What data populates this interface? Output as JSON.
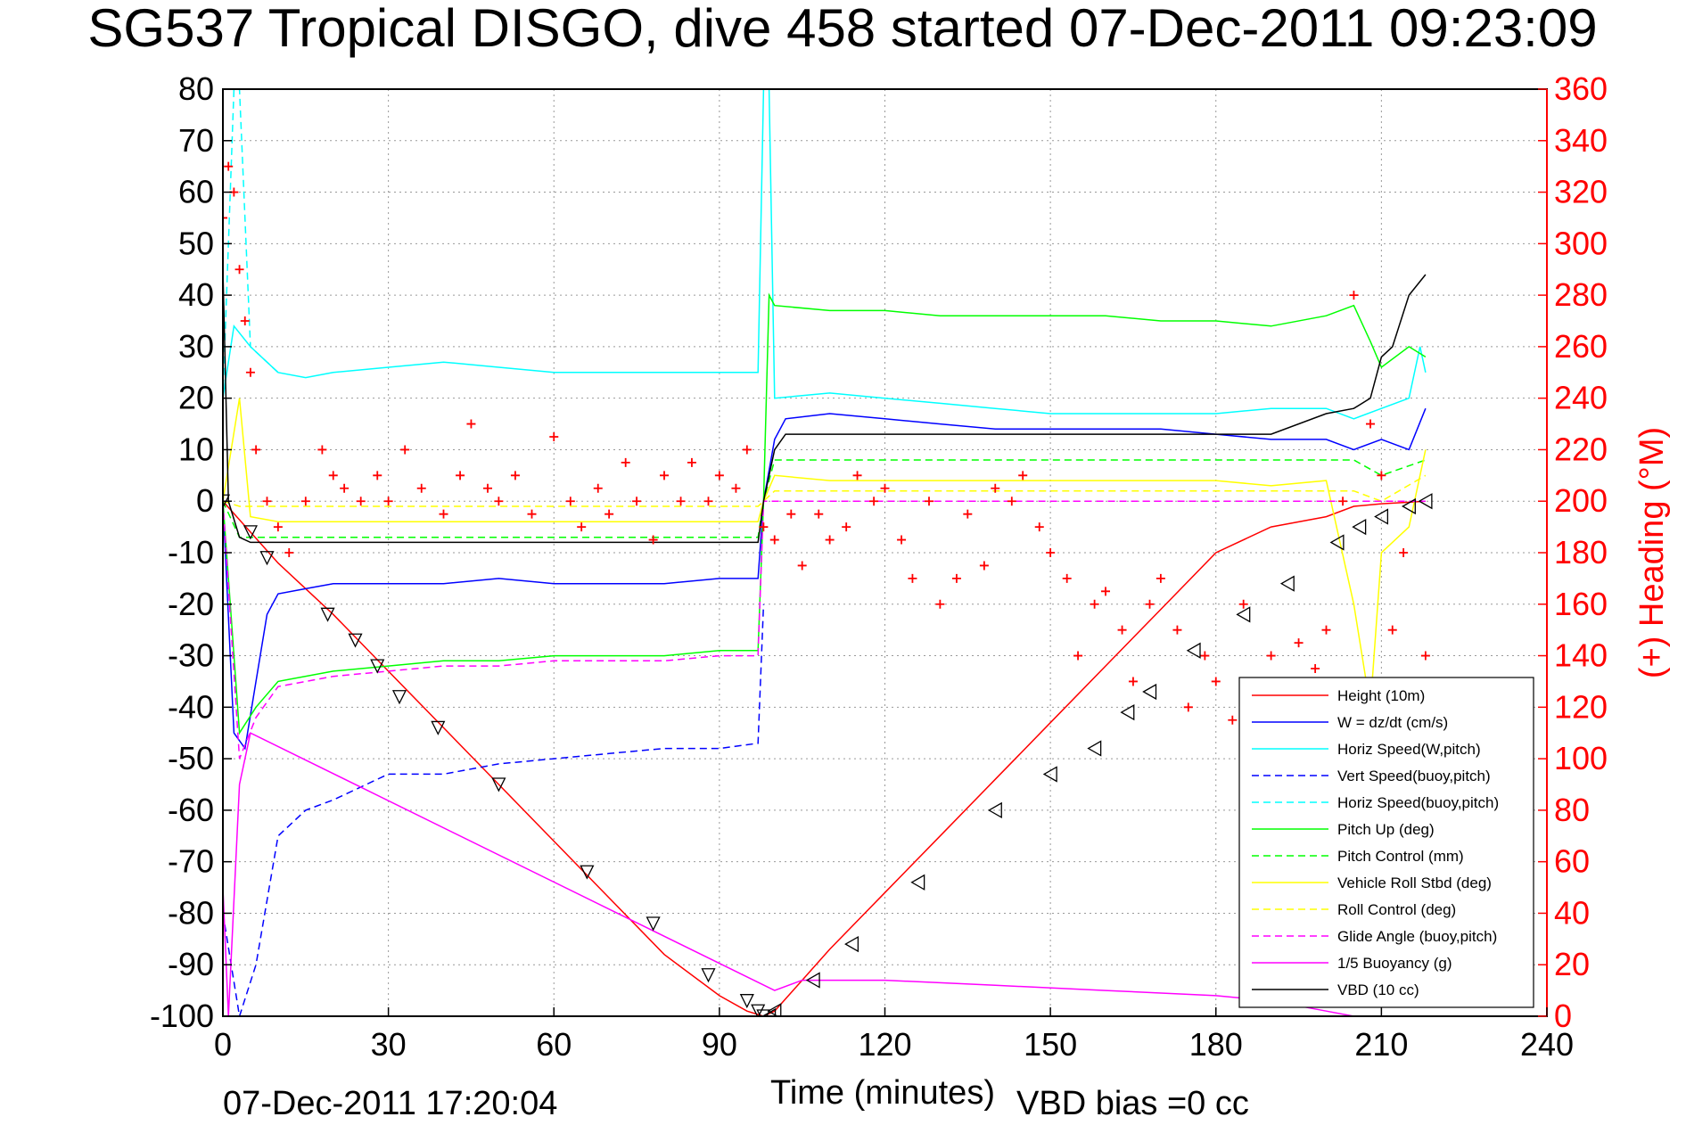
{
  "chart_data": {
    "type": "line",
    "title": "SG537 Tropical DISGO, dive 458 started 07-Dec-2011 09:23:09",
    "xlabel": "Time (minutes)",
    "ylabel_right": "(+) Heading (°M)",
    "footer_left": "07-Dec-2011 17:20:04",
    "footer_right": "VBD bias =0 cc",
    "xlim": [
      0,
      240
    ],
    "ylim": [
      -100,
      80
    ],
    "ylim_right": [
      0,
      360
    ],
    "x_ticks": [
      "0",
      "30",
      "60",
      "90",
      "120",
      "150",
      "180",
      "210",
      "240"
    ],
    "y_ticks": [
      "80",
      "70",
      "60",
      "50",
      "40",
      "30",
      "20",
      "10",
      "0",
      "-10",
      "-20",
      "-30",
      "-40",
      "-50",
      "-60",
      "-70",
      "-80",
      "-90",
      "-100"
    ],
    "y_ticks_right": [
      "360",
      "340",
      "320",
      "300",
      "280",
      "260",
      "240",
      "220",
      "200",
      "180",
      "160",
      "140",
      "120",
      "100",
      "80",
      "60",
      "40",
      "20",
      "0"
    ],
    "grid": true,
    "legend_position": "bottom-right",
    "series": [
      {
        "name": "Height (10m)",
        "color": "#ff0000",
        "style": "solid",
        "x": [
          0,
          5,
          10,
          20,
          30,
          40,
          50,
          60,
          70,
          80,
          90,
          95,
          98,
          100,
          105,
          110,
          120,
          130,
          140,
          150,
          160,
          170,
          180,
          190,
          200,
          205,
          210,
          215,
          218
        ],
        "y": [
          0,
          -6,
          -12,
          -22,
          -33,
          -44,
          -55,
          -66,
          -77,
          -88,
          -96,
          -99,
          -100,
          -99,
          -93,
          -87,
          -76,
          -65,
          -54,
          -43,
          -32,
          -21,
          -10,
          -5,
          -3,
          -1,
          -0.5,
          -0.2,
          0
        ]
      },
      {
        "name": "W = dz/dt (cm/s)",
        "color": "#0000ff",
        "style": "solid",
        "x": [
          0,
          2,
          4,
          6,
          8,
          10,
          15,
          20,
          30,
          40,
          50,
          60,
          70,
          80,
          90,
          97,
          98,
          100,
          102,
          110,
          120,
          130,
          140,
          150,
          160,
          170,
          180,
          190,
          200,
          205,
          210,
          215,
          218
        ],
        "y": [
          0,
          -45,
          -48,
          -35,
          -22,
          -18,
          -17,
          -16,
          -16,
          -16,
          -15,
          -16,
          -16,
          -16,
          -15,
          -15,
          0,
          12,
          16,
          17,
          16,
          15,
          14,
          14,
          14,
          14,
          13,
          12,
          12,
          10,
          12,
          10,
          18
        ]
      },
      {
        "name": "Horiz Speed(W,pitch)",
        "color": "#00ffff",
        "style": "solid",
        "x": [
          0,
          2,
          5,
          10,
          15,
          20,
          30,
          40,
          50,
          60,
          70,
          80,
          90,
          97,
          98,
          99,
          100,
          110,
          120,
          130,
          140,
          150,
          160,
          170,
          180,
          190,
          200,
          205,
          210,
          215,
          217,
          218
        ],
        "y": [
          20,
          34,
          30,
          25,
          24,
          25,
          26,
          27,
          26,
          25,
          25,
          25,
          25,
          25,
          80,
          80,
          20,
          21,
          20,
          19,
          18,
          17,
          17,
          17,
          17,
          18,
          18,
          16,
          18,
          20,
          30,
          25
        ]
      },
      {
        "name": "Vert Speed(buoy,pitch)",
        "color": "#0000ff",
        "style": "dashed",
        "x": [
          0,
          3,
          6,
          10,
          15,
          20,
          30,
          40,
          50,
          60,
          70,
          80,
          90,
          97,
          98
        ],
        "y": [
          -80,
          -100,
          -90,
          -65,
          -60,
          -58,
          -53,
          -53,
          -51,
          -50,
          -49,
          -48,
          -48,
          -47,
          -20
        ]
      },
      {
        "name": "Horiz Speed(buoy,pitch)",
        "color": "#00ffff",
        "style": "dashed",
        "x": [
          0,
          2,
          3,
          5,
          10
        ],
        "y": [
          20,
          80,
          80,
          30,
          25
        ]
      },
      {
        "name": "Pitch Up (deg)",
        "color": "#00ff00",
        "style": "solid",
        "x": [
          0,
          3,
          6,
          10,
          20,
          30,
          40,
          50,
          60,
          70,
          80,
          90,
          97,
          98,
          99,
          100,
          110,
          120,
          130,
          140,
          150,
          160,
          170,
          180,
          190,
          200,
          205,
          208,
          210,
          215,
          218
        ],
        "y": [
          0,
          -45,
          -40,
          -35,
          -33,
          -32,
          -31,
          -31,
          -30,
          -30,
          -30,
          -29,
          -29,
          0,
          40,
          38,
          37,
          37,
          36,
          36,
          36,
          36,
          35,
          35,
          34,
          36,
          38,
          31,
          26,
          30,
          28
        ]
      },
      {
        "name": "Pitch Control (mm)",
        "color": "#00ff00",
        "style": "dashed",
        "x": [
          0,
          3,
          97,
          98,
          100,
          205,
          210,
          218
        ],
        "y": [
          0,
          -7,
          -7,
          0,
          8,
          8,
          5,
          8
        ]
      },
      {
        "name": "Vehicle Roll Stbd (deg)",
        "color": "#ffff00",
        "style": "solid",
        "x": [
          0,
          3,
          5,
          10,
          20,
          30,
          40,
          50,
          60,
          70,
          80,
          90,
          97,
          98,
          100,
          110,
          120,
          130,
          140,
          150,
          160,
          170,
          180,
          190,
          200,
          205,
          208,
          210,
          215,
          218
        ],
        "y": [
          0,
          20,
          -3,
          -4,
          -4,
          -4,
          -4,
          -4,
          -4,
          -4,
          -4,
          -4,
          -4,
          0,
          5,
          4,
          4,
          4,
          4,
          4,
          4,
          4,
          4,
          3,
          4,
          -20,
          -40,
          -10,
          -5,
          10
        ]
      },
      {
        "name": "Roll Control (deg)",
        "color": "#ffff00",
        "style": "dashed",
        "x": [
          0,
          3,
          97,
          98,
          100,
          205,
          210,
          218
        ],
        "y": [
          0,
          -1,
          -1,
          0,
          2,
          2,
          0,
          5
        ]
      },
      {
        "name": "Glide Angle (buoy,pitch)",
        "color": "#ff00ff",
        "style": "dashed",
        "x": [
          0,
          3,
          6,
          10,
          20,
          30,
          40,
          50,
          60,
          70,
          80,
          90,
          97,
          98,
          100,
          218
        ],
        "y": [
          0,
          -50,
          -42,
          -36,
          -34,
          -33,
          -32,
          -32,
          -31,
          -31,
          -31,
          -30,
          -30,
          0,
          0,
          0
        ]
      },
      {
        "name": "1/5 Buoyancy (g)",
        "color": "#ff00ff",
        "style": "solid",
        "x": [
          0,
          1,
          3,
          5,
          100,
          105,
          120,
          140,
          160,
          180,
          190,
          200,
          205
        ],
        "y": [
          -75,
          -100,
          -55,
          -45,
          -95,
          -93,
          -93,
          -94,
          -95,
          -96,
          -97,
          -99,
          -100
        ]
      },
      {
        "name": "VBD (10 cc)",
        "color": "#000000",
        "style": "solid",
        "x": [
          0,
          1,
          3,
          5,
          97,
          98,
          100,
          102,
          190,
          200,
          205,
          208,
          210,
          212,
          215,
          218
        ],
        "y": [
          45,
          0,
          -7,
          -8,
          -8,
          0,
          10,
          13,
          13,
          17,
          18,
          20,
          28,
          30,
          40,
          44
        ]
      }
    ],
    "heading_series": {
      "name": "(+) Heading (°M)",
      "color": "#ff0000",
      "marker": "+",
      "x": [
        0,
        1,
        2,
        3,
        4,
        5,
        6,
        8,
        10,
        12,
        15,
        18,
        20,
        22,
        25,
        28,
        30,
        33,
        36,
        40,
        43,
        45,
        48,
        50,
        53,
        56,
        60,
        63,
        65,
        68,
        70,
        73,
        75,
        78,
        80,
        83,
        85,
        88,
        90,
        93,
        95,
        98,
        100,
        103,
        105,
        108,
        110,
        113,
        115,
        118,
        120,
        123,
        125,
        128,
        130,
        133,
        135,
        138,
        140,
        143,
        145,
        148,
        150,
        153,
        155,
        158,
        160,
        163,
        165,
        168,
        170,
        173,
        175,
        178,
        180,
        183,
        185,
        188,
        190,
        193,
        195,
        198,
        200,
        203,
        205,
        208,
        210,
        212,
        214,
        216,
        218
      ],
      "y": [
        310,
        330,
        320,
        290,
        270,
        250,
        220,
        200,
        190,
        180,
        200,
        220,
        210,
        205,
        200,
        210,
        200,
        220,
        205,
        195,
        210,
        230,
        205,
        200,
        210,
        195,
        225,
        200,
        190,
        205,
        195,
        215,
        200,
        185,
        210,
        200,
        215,
        200,
        210,
        205,
        220,
        190,
        185,
        195,
        175,
        195,
        185,
        190,
        210,
        200,
        205,
        185,
        170,
        200,
        160,
        170,
        195,
        175,
        205,
        200,
        210,
        190,
        180,
        170,
        140,
        160,
        165,
        150,
        130,
        160,
        170,
        150,
        120,
        140,
        130,
        115,
        160,
        110,
        140,
        120,
        145,
        135,
        150,
        200,
        280,
        230,
        210,
        150,
        180,
        120,
        140
      ]
    },
    "dive_markers": {
      "x": [
        0,
        5,
        8,
        19,
        24,
        28,
        32,
        39,
        50,
        66,
        78,
        88,
        95,
        97,
        98,
        99,
        100,
        107,
        114,
        126,
        140,
        150,
        158,
        164,
        168,
        176,
        185,
        193,
        202,
        206,
        210,
        215,
        218
      ],
      "y": [
        0,
        -6,
        -11,
        -22,
        -27,
        -32,
        -38,
        -44,
        -55,
        -72,
        -82,
        -92,
        -97,
        -99,
        -100,
        -100,
        -99,
        -93,
        -86,
        -74,
        -60,
        -53,
        -48,
        -41,
        -37,
        -29,
        -22,
        -16,
        -8,
        -5,
        -3,
        -1,
        0
      ]
    }
  }
}
